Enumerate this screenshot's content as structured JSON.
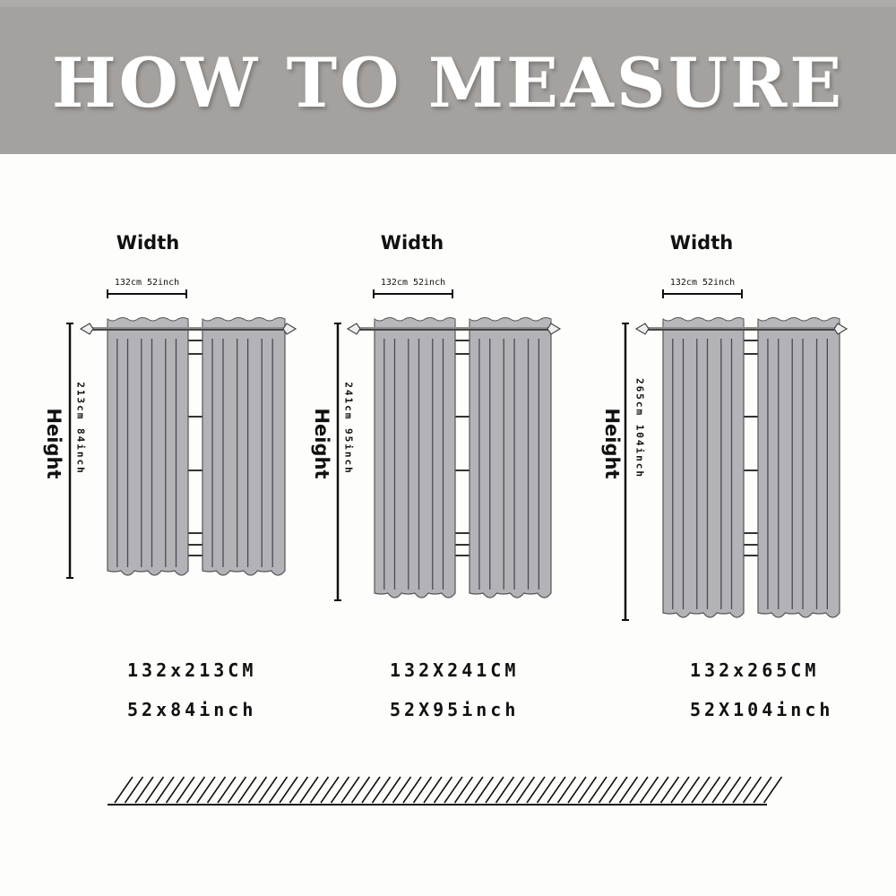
{
  "title": "HOW TO MEASURE",
  "panels": [
    {
      "width_label": "Width",
      "width_dim": "132cm 52inch",
      "height_label": "Height",
      "height_dim": "213cm 84inch",
      "size_cm": "132x213CM",
      "size_inch": "52x84inch"
    },
    {
      "width_label": "Width",
      "width_dim": "132cm 52inch",
      "height_label": "Height",
      "height_dim": "241cm 95inch",
      "size_cm": "132X241CM",
      "size_inch": "52X95inch"
    },
    {
      "width_label": "Width",
      "width_dim": "132cm 52inch",
      "height_label": "Height",
      "height_dim": "265cm 104inch",
      "size_cm": "132x265CM",
      "size_inch": "52X104inch"
    }
  ],
  "colors": {
    "banner": "#a5a19e",
    "curtain": "#b3b3b7",
    "ink": "#111111"
  }
}
